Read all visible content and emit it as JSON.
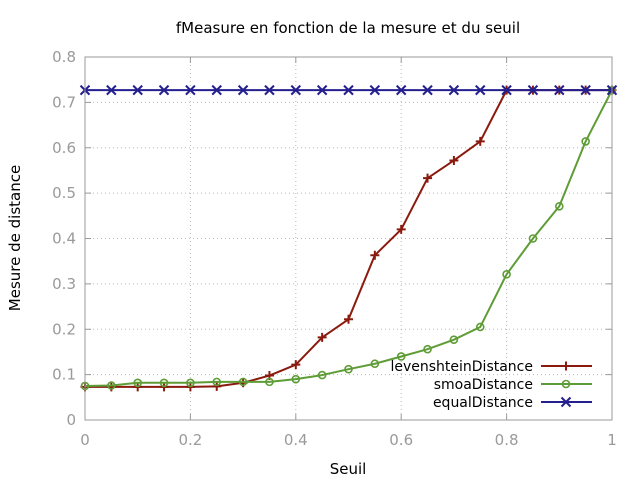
{
  "chart_data": {
    "type": "line",
    "title": "fMeasure en fonction de la mesure et du seuil",
    "xlabel": "Seuil",
    "ylabel": "Mesure de distance",
    "xlim": [
      0,
      1
    ],
    "ylim": [
      0,
      0.8
    ],
    "xticks": [
      "0",
      "0.2",
      "0.4",
      "0.6",
      "0.8",
      "1"
    ],
    "xtick_values": [
      0,
      0.2,
      0.4,
      0.6,
      0.8,
      1
    ],
    "yticks": [
      "0",
      "0.1",
      "0.2",
      "0.3",
      "0.4",
      "0.5",
      "0.6",
      "0.7",
      "0.8"
    ],
    "ytick_values": [
      0,
      0.1,
      0.2,
      0.3,
      0.4,
      0.5,
      0.6,
      0.7,
      0.8
    ],
    "grid": true,
    "legend_position": "bottom-right",
    "x": [
      0,
      0.05,
      0.1,
      0.15,
      0.2,
      0.25,
      0.3,
      0.35,
      0.4,
      0.45,
      0.5,
      0.55,
      0.6,
      0.65,
      0.7,
      0.75,
      0.8,
      0.85,
      0.9,
      0.95,
      1
    ],
    "series": [
      {
        "name": "levenshteinDistance",
        "color": "#8b1a0e",
        "marker": "plus",
        "values": [
          0.073,
          0.073,
          0.073,
          0.073,
          0.073,
          0.074,
          0.082,
          0.098,
          0.122,
          0.182,
          0.222,
          0.363,
          0.42,
          0.533,
          0.572,
          0.614,
          0.727,
          0.727,
          0.727,
          0.727,
          0.727
        ]
      },
      {
        "name": "smoaDistance",
        "color": "#5e9c36",
        "marker": "circle",
        "values": [
          0.075,
          0.076,
          0.082,
          0.082,
          0.082,
          0.084,
          0.084,
          0.084,
          0.09,
          0.099,
          0.112,
          0.124,
          0.14,
          0.156,
          0.177,
          0.205,
          0.321,
          0.4,
          0.471,
          0.614,
          0.727
        ]
      },
      {
        "name": "equalDistance",
        "color": "#241f8e",
        "marker": "x",
        "values": [
          0.727,
          0.727,
          0.727,
          0.727,
          0.727,
          0.727,
          0.727,
          0.727,
          0.727,
          0.727,
          0.727,
          0.727,
          0.727,
          0.727,
          0.727,
          0.727,
          0.727,
          0.727,
          0.727,
          0.727,
          0.727
        ]
      }
    ]
  }
}
